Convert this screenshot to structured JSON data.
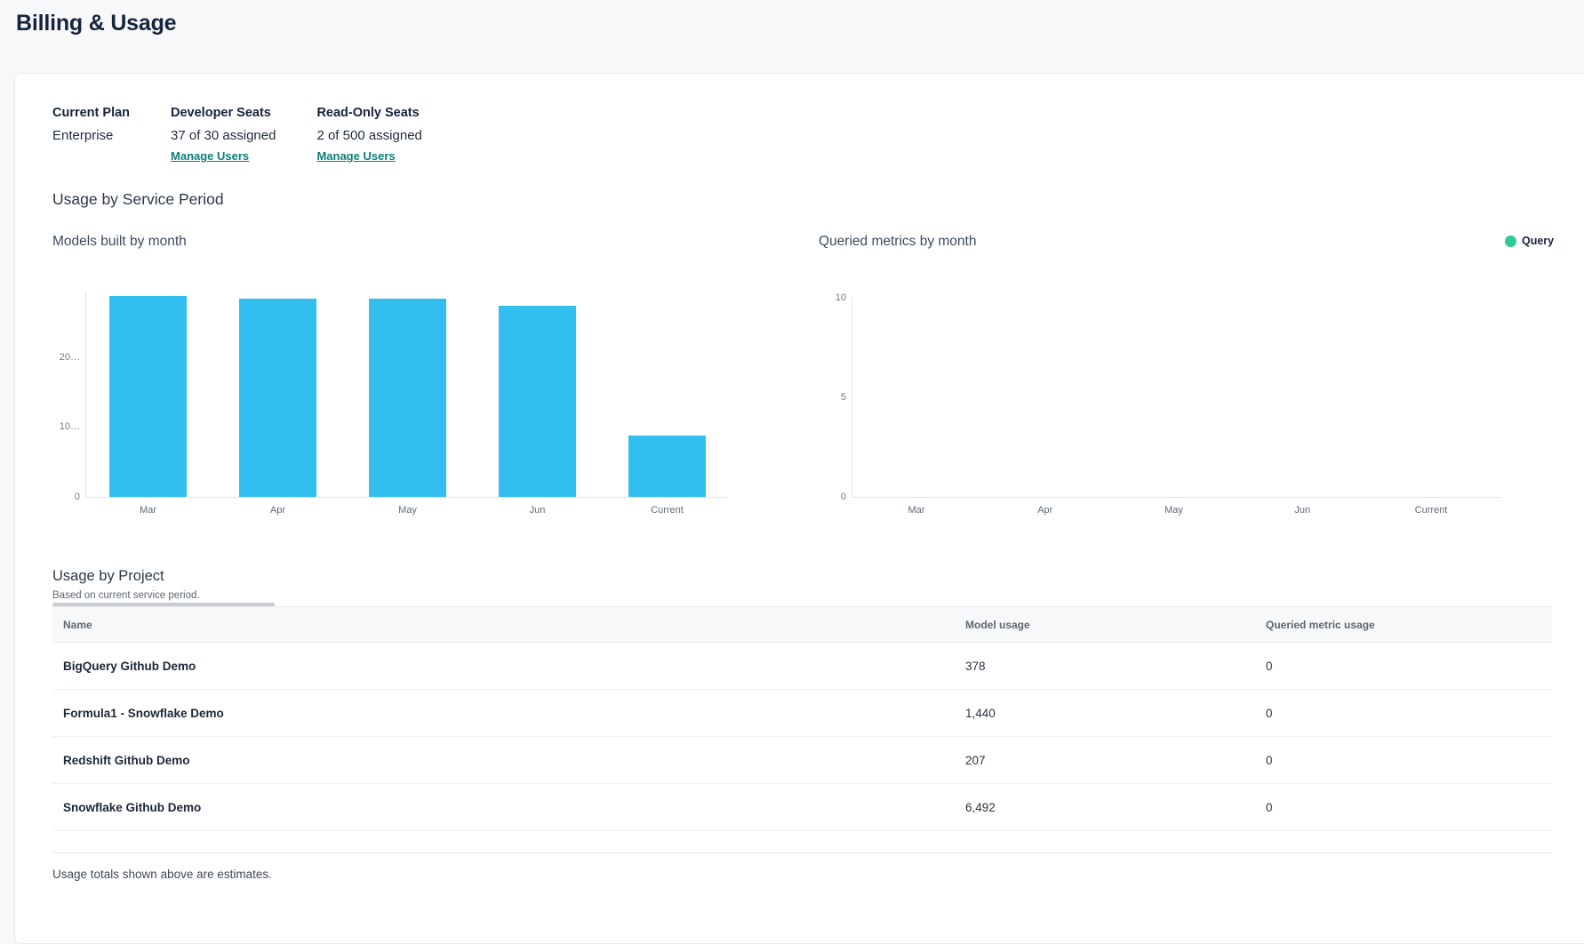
{
  "page_title": "Billing & Usage",
  "plan_summary": {
    "columns": [
      {
        "label": "Current Plan",
        "value": "Enterprise"
      },
      {
        "label": "Developer Seats",
        "value": "37 of 30 assigned",
        "link": "Manage Users"
      },
      {
        "label": "Read-Only Seats",
        "value": "2 of 500 assigned",
        "link": "Manage Users"
      }
    ]
  },
  "usage_period": {
    "title": "Usage by Service Period"
  },
  "legend": {
    "label": "Query",
    "color": "#2ecb92"
  },
  "chart_data": [
    {
      "type": "bar",
      "title": "Models built by month",
      "categories": [
        "Mar",
        "Apr",
        "May",
        "Jun",
        "Current"
      ],
      "values": [
        28700,
        28400,
        28300,
        27400,
        8800
      ],
      "ylim": [
        0,
        29500
      ],
      "yticks": [
        {
          "value": 0,
          "label": "0"
        },
        {
          "value": 10000,
          "label": "10…"
        },
        {
          "value": 20000,
          "label": "20…"
        }
      ],
      "bar_color": "#33bef0",
      "grid": false,
      "xlabel": "",
      "ylabel": ""
    },
    {
      "type": "bar",
      "title": "Queried metrics by month",
      "categories": [
        "Mar",
        "Apr",
        "May",
        "Jun",
        "Current"
      ],
      "series": [
        {
          "name": "Query",
          "values": [
            0,
            0,
            0,
            0,
            0
          ],
          "color": "#2ecb92"
        }
      ],
      "ylim": [
        0,
        10
      ],
      "yticks": [
        {
          "value": 0,
          "label": "0"
        },
        {
          "value": 5,
          "label": "5"
        },
        {
          "value": 10,
          "label": "10"
        }
      ],
      "grid": false,
      "legend_position": "top-right",
      "xlabel": "",
      "ylabel": ""
    }
  ],
  "project_usage": {
    "title": "Usage by Project",
    "subtitle": "Based on current service period.",
    "columns": [
      "Name",
      "Model usage",
      "Queried metric usage"
    ],
    "rows": [
      {
        "name": "BigQuery Github Demo",
        "model_usage": "378",
        "queried_metric_usage": "0"
      },
      {
        "name": "Formula1 - Snowflake Demo",
        "model_usage": "1,440",
        "queried_metric_usage": "0"
      },
      {
        "name": "Redshift Github Demo",
        "model_usage": "207",
        "queried_metric_usage": "0"
      },
      {
        "name": "Snowflake Github Demo",
        "model_usage": "6,492",
        "queried_metric_usage": "0"
      }
    ],
    "footnote": "Usage totals shown above are estimates."
  },
  "colors": {
    "bar_blue": "#33bef0",
    "legend_green": "#2ecb92",
    "link_teal": "#0d7e79",
    "page_background": "#f7f8fa"
  }
}
